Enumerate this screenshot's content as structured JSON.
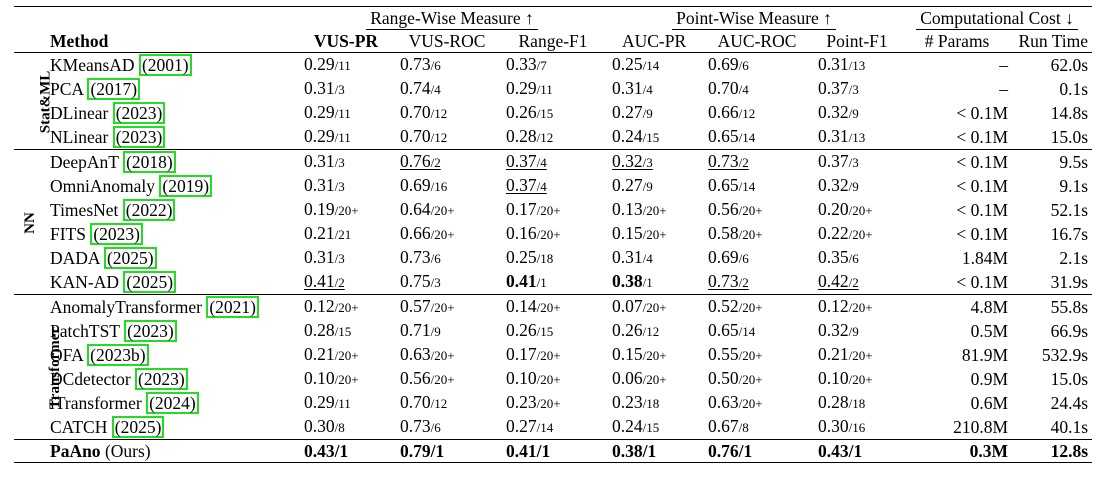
{
  "table": {
    "header": {
      "method": "Method",
      "group_range": "Range-Wise Measure ↑",
      "group_point": "Point-Wise Measure ↑",
      "group_cost": "Computational Cost ↓",
      "cols": [
        "VUS-PR",
        "VUS-ROC",
        "Range-F1",
        "AUC-PR",
        "AUC-ROC",
        "Point-F1",
        "# Params",
        "Run Time"
      ]
    },
    "groups": [
      {
        "label": "Stat&ML",
        "rows": [
          {
            "name": "KMeansAD",
            "year": "2001",
            "cells": [
              [
                "0.29",
                "/11"
              ],
              [
                "0.73",
                "/6"
              ],
              [
                "0.33",
                "/7"
              ],
              [
                "0.25",
                "/14"
              ],
              [
                "0.69",
                "/6"
              ],
              [
                "0.31",
                "/13"
              ]
            ],
            "params": "–",
            "time": "62.0s"
          },
          {
            "name": "PCA",
            "year": "2017",
            "cells": [
              [
                "0.31",
                "/3"
              ],
              [
                "0.74",
                "/4"
              ],
              [
                "0.29",
                "/11"
              ],
              [
                "0.31",
                "/4"
              ],
              [
                "0.70",
                "/4"
              ],
              [
                "0.37",
                "/3"
              ]
            ],
            "params": "–",
            "time": "0.1s"
          },
          {
            "name": "DLinear",
            "year": "2023",
            "cells": [
              [
                "0.29",
                "/11"
              ],
              [
                "0.70",
                "/12"
              ],
              [
                "0.26",
                "/15"
              ],
              [
                "0.27",
                "/9"
              ],
              [
                "0.66",
                "/12"
              ],
              [
                "0.32",
                "/9"
              ]
            ],
            "params": "< 0.1M",
            "time": "14.8s"
          },
          {
            "name": "NLinear",
            "year": "2023",
            "cells": [
              [
                "0.29",
                "/11"
              ],
              [
                "0.70",
                "/12"
              ],
              [
                "0.28",
                "/12"
              ],
              [
                "0.24",
                "/15"
              ],
              [
                "0.65",
                "/14"
              ],
              [
                "0.31",
                "/13"
              ]
            ],
            "params": "< 0.1M",
            "time": "15.0s"
          }
        ]
      },
      {
        "label": "NN",
        "rows": [
          {
            "name": "DeepAnT",
            "year": "2018",
            "cells": [
              [
                "0.31",
                "/3"
              ],
              [
                "0.76",
                "/2"
              ],
              [
                "0.37",
                "/4"
              ],
              [
                "0.32",
                "/3"
              ],
              [
                "0.73",
                "/2"
              ],
              [
                "0.37",
                "/3"
              ]
            ],
            "params": "< 0.1M",
            "time": "9.5s"
          },
          {
            "name": "OmniAnomaly",
            "year": "2019",
            "cells": [
              [
                "0.31",
                "/3"
              ],
              [
                "0.69",
                "/16"
              ],
              [
                "0.37",
                "/4"
              ],
              [
                "0.27",
                "/9"
              ],
              [
                "0.65",
                "/14"
              ],
              [
                "0.32",
                "/9"
              ]
            ],
            "params": "< 0.1M",
            "time": "9.1s"
          },
          {
            "name": "TimesNet",
            "year": "2022",
            "cells": [
              [
                "0.19",
                "/20+"
              ],
              [
                "0.64",
                "/20+"
              ],
              [
                "0.17",
                "/20+"
              ],
              [
                "0.13",
                "/20+"
              ],
              [
                "0.56",
                "/20+"
              ],
              [
                "0.20",
                "/20+"
              ]
            ],
            "params": "< 0.1M",
            "time": "52.1s"
          },
          {
            "name": "FITS",
            "year": "2023",
            "cells": [
              [
                "0.21",
                "/21"
              ],
              [
                "0.66",
                "/20+"
              ],
              [
                "0.16",
                "/20+"
              ],
              [
                "0.15",
                "/20+"
              ],
              [
                "0.58",
                "/20+"
              ],
              [
                "0.22",
                "/20+"
              ]
            ],
            "params": "< 0.1M",
            "time": "16.7s"
          },
          {
            "name": "DADA",
            "year": "2025",
            "cells": [
              [
                "0.31",
                "/3"
              ],
              [
                "0.73",
                "/6"
              ],
              [
                "0.25",
                "/18"
              ],
              [
                "0.31",
                "/4"
              ],
              [
                "0.69",
                "/6"
              ],
              [
                "0.35",
                "/6"
              ]
            ],
            "params": "1.84M",
            "time": "2.1s"
          },
          {
            "name": "KAN-AD",
            "year": "2025",
            "cells": [
              [
                "0.41",
                "/2"
              ],
              [
                "0.75",
                "/3"
              ],
              [
                "0.41",
                "/1"
              ],
              [
                "0.38",
                "/1"
              ],
              [
                "0.73",
                "/2"
              ],
              [
                "0.42",
                "/2"
              ]
            ],
            "params": "< 0.1M",
            "time": "31.9s"
          }
        ]
      },
      {
        "label": "Transformer",
        "rows": [
          {
            "name": "AnomalyTransformer",
            "year": "2021",
            "cells": [
              [
                "0.12",
                "/20+"
              ],
              [
                "0.57",
                "/20+"
              ],
              [
                "0.14",
                "/20+"
              ],
              [
                "0.07",
                "/20+"
              ],
              [
                "0.52",
                "/20+"
              ],
              [
                "0.12",
                "/20+"
              ]
            ],
            "params": "4.8M",
            "time": "55.8s"
          },
          {
            "name": "PatchTST",
            "year": "2023",
            "cells": [
              [
                "0.28",
                "/15"
              ],
              [
                "0.71",
                "/9"
              ],
              [
                "0.26",
                "/15"
              ],
              [
                "0.26",
                "/12"
              ],
              [
                "0.65",
                "/14"
              ],
              [
                "0.32",
                "/9"
              ]
            ],
            "params": "0.5M",
            "time": "66.9s"
          },
          {
            "name": "OFA",
            "year": "2023b",
            "cells": [
              [
                "0.21",
                "/20+"
              ],
              [
                "0.63",
                "/20+"
              ],
              [
                "0.17",
                "/20+"
              ],
              [
                "0.15",
                "/20+"
              ],
              [
                "0.55",
                "/20+"
              ],
              [
                "0.21",
                "/20+"
              ]
            ],
            "params": "81.9M",
            "time": "532.9s"
          },
          {
            "name": "DCdetector",
            "year": "2023",
            "cells": [
              [
                "0.10",
                "/20+"
              ],
              [
                "0.56",
                "/20+"
              ],
              [
                "0.10",
                "/20+"
              ],
              [
                "0.06",
                "/20+"
              ],
              [
                "0.50",
                "/20+"
              ],
              [
                "0.10",
                "/20+"
              ]
            ],
            "params": "0.9M",
            "time": "15.0s"
          },
          {
            "name": "iTransformer",
            "year": "2024",
            "cells": [
              [
                "0.29",
                "/11"
              ],
              [
                "0.70",
                "/12"
              ],
              [
                "0.23",
                "/20+"
              ],
              [
                "0.23",
                "/18"
              ],
              [
                "0.63",
                "/20+"
              ],
              [
                "0.28",
                "/18"
              ]
            ],
            "params": "0.6M",
            "time": "24.4s"
          },
          {
            "name": "CATCH",
            "year": "2025",
            "cells": [
              [
                "0.30",
                "/8"
              ],
              [
                "0.73",
                "/6"
              ],
              [
                "0.27",
                "/14"
              ],
              [
                "0.24",
                "/15"
              ],
              [
                "0.67",
                "/8"
              ],
              [
                "0.30",
                "/16"
              ]
            ],
            "params": "210.8M",
            "time": "40.1s"
          }
        ]
      }
    ],
    "ours": {
      "name": "PaAno",
      "suffix": " (Ours)",
      "cells": [
        "0.43/1",
        "0.79/1",
        "0.41/1",
        "0.38/1",
        "0.76/1",
        "0.43/1"
      ],
      "params": "0.3M",
      "time": "12.8s"
    }
  }
}
